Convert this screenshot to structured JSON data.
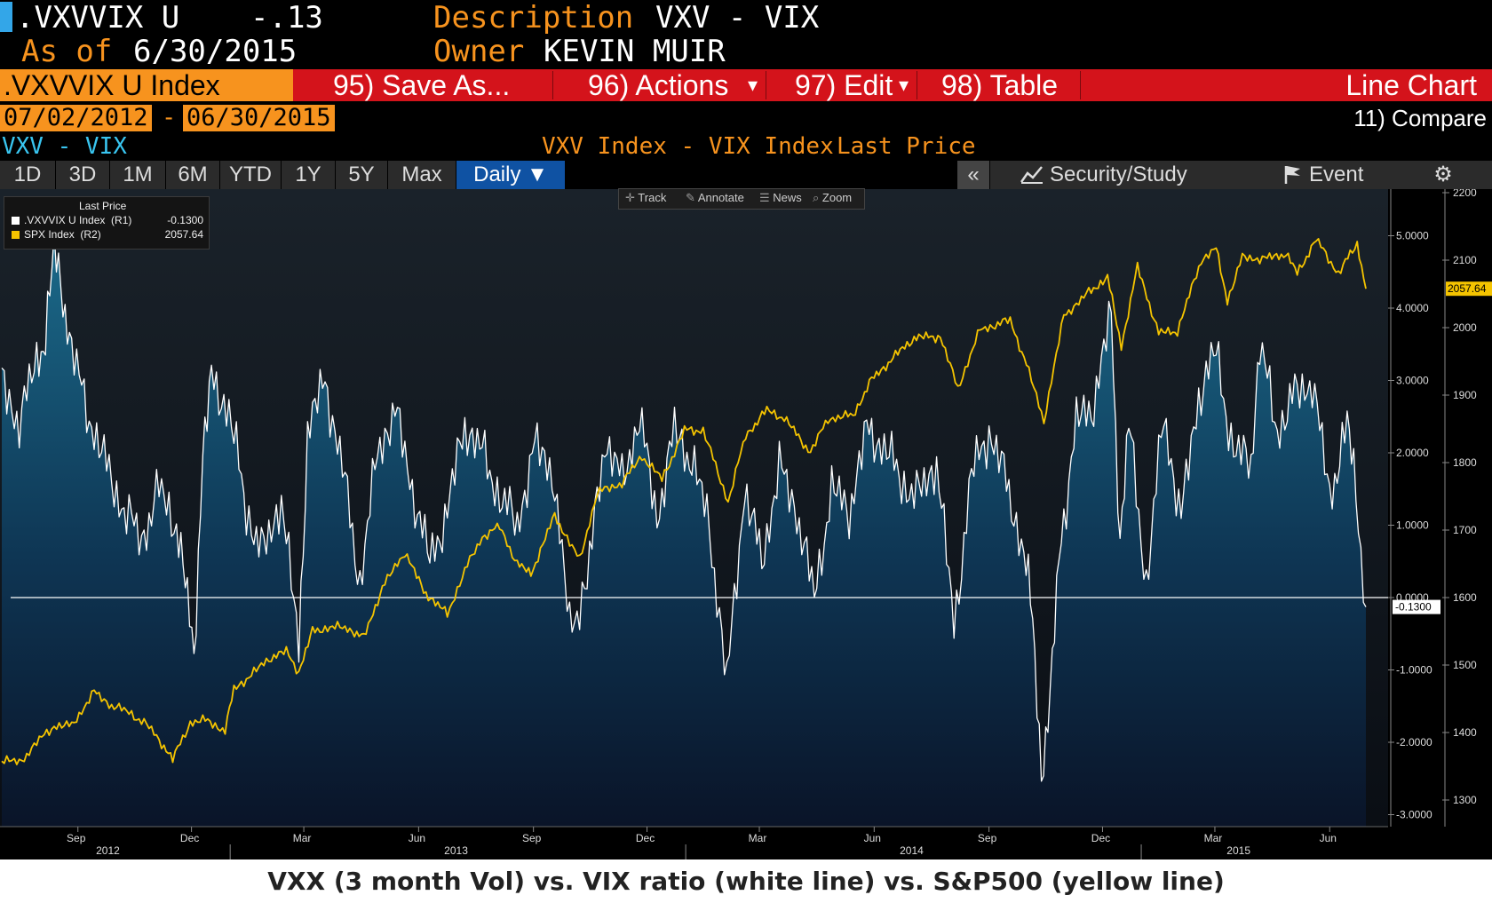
{
  "header": {
    "ticker": ".VXVVIX U",
    "change": "-.13",
    "asof_label": "As of",
    "asof_date": "6/30/2015",
    "description_label": "Description",
    "description_value": "VXV - VIX",
    "owner_label": "Owner",
    "owner_value": "KEVIN MUIR"
  },
  "toolbar": {
    "security": ".VXVVIX U Index",
    "save_as": "95) Save As...",
    "actions": "96) Actions",
    "edit": "97) Edit",
    "table": "98) Table",
    "chart_type": "Line Chart",
    "dropdown_glyph": "▾"
  },
  "dates": {
    "start": "07/02/2012",
    "dash": "-",
    "end": "06/30/2015",
    "compare": "11) Compare"
  },
  "subtitle": {
    "left": "VXV - VIX",
    "center": "VXV Index - VIX Index",
    "right": "Last Price"
  },
  "periods": [
    "1D",
    "3D",
    "1M",
    "6M",
    "YTD",
    "1Y",
    "5Y",
    "Max"
  ],
  "frequency": "Daily ▼",
  "right_tools": {
    "collapse": "«",
    "security_study": "Security/Study",
    "event": "Event",
    "settings": "⚙"
  },
  "chart_tools": [
    "Track",
    "Annotate",
    "News",
    "Zoom"
  ],
  "legend": {
    "title": "Last Price",
    "rows": [
      {
        "label": ".VXVVIX U Index  (R1)",
        "value": "-0.1300",
        "color": "#ffffff"
      },
      {
        "label": "SPX Index  (R2)",
        "value": "2057.64",
        "color": "#f5c400"
      }
    ]
  },
  "caption": "VXX (3 month Vol) vs. VIX ratio (white line) vs. S&P500 (yellow line)",
  "colors": {
    "accent": "#f7931e",
    "toolbar_red": "#d4131b",
    "spx": "#f5c400",
    "ratio": "#ffffff",
    "active_period": "#0f52a3"
  },
  "chart_data": {
    "type": "line",
    "x_range": [
      "2012-07-02",
      "2015-06-30"
    ],
    "x_tick_months": [
      "Sep",
      "Dec",
      "Mar",
      "Jun",
      "Sep",
      "Dec",
      "Mar",
      "Jun",
      "Sep",
      "Dec",
      "Mar",
      "Jun"
    ],
    "x_tick_years": [
      "2012",
      "2013",
      "2014",
      "2015"
    ],
    "axes": {
      "R1": {
        "ticks": [
          "5.0000",
          "4.0000",
          "3.0000",
          "2.0000",
          "1.0000",
          "0.0000",
          "-1.0000",
          "-2.0000",
          "-3.0000"
        ],
        "range": [
          -3.3,
          5.0
        ]
      },
      "R2": {
        "ticks": [
          "2200",
          "2100",
          "2000",
          "1900",
          "1800",
          "1700",
          "1600",
          "1500",
          "1400",
          "1300"
        ],
        "range": [
          1260,
          2200
        ]
      }
    },
    "last_values": {
      "R1": "-0.1300",
      "R2": "2057.64"
    },
    "reference_line": 0,
    "series": [
      {
        "name": ".VXVVIX U Index (R1)",
        "color": "#ffffff",
        "fill": true,
        "points": [
          [
            "2012-07-02",
            3.0
          ],
          [
            "2012-07-16",
            2.4
          ],
          [
            "2012-07-30",
            3.3
          ],
          [
            "2012-08-06",
            3.6
          ],
          [
            "2012-08-13",
            4.8
          ],
          [
            "2012-08-20",
            4.2
          ],
          [
            "2012-08-27",
            3.4
          ],
          [
            "2012-09-10",
            2.5
          ],
          [
            "2012-09-24",
            1.8
          ],
          [
            "2012-10-08",
            1.2
          ],
          [
            "2012-10-22",
            0.8
          ],
          [
            "2012-11-05",
            1.5
          ],
          [
            "2012-11-19",
            1.0
          ],
          [
            "2012-11-26",
            0.2
          ],
          [
            "2012-12-03",
            -0.8
          ],
          [
            "2012-12-10",
            2.0
          ],
          [
            "2012-12-17",
            3.0
          ],
          [
            "2012-12-31",
            2.6
          ],
          [
            "2013-01-14",
            1.2
          ],
          [
            "2013-01-28",
            0.6
          ],
          [
            "2013-02-11",
            1.4
          ],
          [
            "2013-02-25",
            -0.7
          ],
          [
            "2013-03-04",
            2.3
          ],
          [
            "2013-03-18",
            3.0
          ],
          [
            "2013-04-01",
            1.8
          ],
          [
            "2013-04-15",
            0.2
          ],
          [
            "2013-04-29",
            2.0
          ],
          [
            "2013-05-13",
            2.6
          ],
          [
            "2013-05-27",
            1.5
          ],
          [
            "2013-06-10",
            0.5
          ],
          [
            "2013-06-24",
            1.2
          ],
          [
            "2013-07-08",
            2.4
          ],
          [
            "2013-07-22",
            2.0
          ],
          [
            "2013-08-05",
            1.4
          ],
          [
            "2013-08-19",
            1.0
          ],
          [
            "2013-09-02",
            2.1
          ],
          [
            "2013-09-16",
            1.8
          ],
          [
            "2013-09-30",
            -0.4
          ],
          [
            "2013-10-14",
            0.2
          ],
          [
            "2013-10-28",
            2.2
          ],
          [
            "2013-11-11",
            1.6
          ],
          [
            "2013-11-25",
            2.5
          ],
          [
            "2013-12-09",
            1.1
          ],
          [
            "2013-12-23",
            2.3
          ],
          [
            "2014-01-06",
            1.9
          ],
          [
            "2014-01-20",
            1.0
          ],
          [
            "2014-02-03",
            -1.2
          ],
          [
            "2014-02-17",
            1.5
          ],
          [
            "2014-03-03",
            0.5
          ],
          [
            "2014-03-17",
            1.8
          ],
          [
            "2014-03-31",
            1.2
          ],
          [
            "2014-04-14",
            0.0
          ],
          [
            "2014-04-28",
            1.5
          ],
          [
            "2014-05-12",
            1.2
          ],
          [
            "2014-05-26",
            2.3
          ],
          [
            "2014-06-09",
            2.1
          ],
          [
            "2014-06-23",
            1.6
          ],
          [
            "2014-07-07",
            1.4
          ],
          [
            "2014-07-21",
            1.9
          ],
          [
            "2014-08-04",
            -0.4
          ],
          [
            "2014-08-18",
            1.7
          ],
          [
            "2014-09-01",
            2.3
          ],
          [
            "2014-09-15",
            1.6
          ],
          [
            "2014-09-29",
            0.6
          ],
          [
            "2014-10-06",
            -0.3
          ],
          [
            "2014-10-13",
            -2.4
          ],
          [
            "2014-10-20",
            -1.5
          ],
          [
            "2014-10-27",
            0.6
          ],
          [
            "2014-11-10",
            2.4
          ],
          [
            "2014-11-24",
            2.7
          ],
          [
            "2014-12-08",
            3.9
          ],
          [
            "2014-12-15",
            0.8
          ],
          [
            "2014-12-22",
            2.4
          ],
          [
            "2015-01-05",
            0.2
          ],
          [
            "2015-01-19",
            2.5
          ],
          [
            "2015-02-02",
            1.1
          ],
          [
            "2015-02-16",
            2.8
          ],
          [
            "2015-03-02",
            3.4
          ],
          [
            "2015-03-16",
            2.0
          ],
          [
            "2015-03-30",
            1.9
          ],
          [
            "2015-04-06",
            3.5
          ],
          [
            "2015-04-20",
            2.3
          ],
          [
            "2015-05-04",
            2.8
          ],
          [
            "2015-05-18",
            3.0
          ],
          [
            "2015-06-01",
            1.4
          ],
          [
            "2015-06-15",
            2.4
          ],
          [
            "2015-06-22",
            1.5
          ],
          [
            "2015-06-30",
            -0.13
          ]
        ]
      },
      {
        "name": "SPX Index (R2)",
        "color": "#f5c400",
        "fill": false,
        "points": [
          [
            "2012-07-02",
            1360
          ],
          [
            "2012-07-16",
            1355
          ],
          [
            "2012-07-30",
            1385
          ],
          [
            "2012-08-13",
            1410
          ],
          [
            "2012-08-27",
            1410
          ],
          [
            "2012-09-14",
            1460
          ],
          [
            "2012-09-28",
            1440
          ],
          [
            "2012-10-12",
            1430
          ],
          [
            "2012-10-26",
            1412
          ],
          [
            "2012-11-09",
            1380
          ],
          [
            "2012-11-16",
            1360
          ],
          [
            "2012-11-30",
            1415
          ],
          [
            "2012-12-14",
            1418
          ],
          [
            "2012-12-28",
            1402
          ],
          [
            "2013-01-04",
            1465
          ],
          [
            "2013-01-18",
            1485
          ],
          [
            "2013-02-01",
            1510
          ],
          [
            "2013-02-15",
            1520
          ],
          [
            "2013-02-25",
            1490
          ],
          [
            "2013-03-08",
            1550
          ],
          [
            "2013-03-22",
            1556
          ],
          [
            "2013-04-05",
            1555
          ],
          [
            "2013-04-18",
            1540
          ],
          [
            "2013-05-03",
            1615
          ],
          [
            "2013-05-21",
            1668
          ],
          [
            "2013-06-05",
            1610
          ],
          [
            "2013-06-24",
            1575
          ],
          [
            "2013-07-08",
            1640
          ],
          [
            "2013-07-22",
            1690
          ],
          [
            "2013-08-05",
            1705
          ],
          [
            "2013-08-19",
            1650
          ],
          [
            "2013-08-30",
            1635
          ],
          [
            "2013-09-18",
            1722
          ],
          [
            "2013-10-08",
            1655
          ],
          [
            "2013-10-22",
            1755
          ],
          [
            "2013-11-11",
            1770
          ],
          [
            "2013-11-27",
            1810
          ],
          [
            "2013-12-13",
            1775
          ],
          [
            "2013-12-31",
            1848
          ],
          [
            "2014-01-15",
            1848
          ],
          [
            "2014-02-04",
            1742
          ],
          [
            "2014-02-18",
            1840
          ],
          [
            "2014-03-07",
            1878
          ],
          [
            "2014-03-21",
            1866
          ],
          [
            "2014-04-11",
            1815
          ],
          [
            "2014-04-25",
            1865
          ],
          [
            "2014-05-15",
            1870
          ],
          [
            "2014-05-30",
            1923
          ],
          [
            "2014-06-20",
            1962
          ],
          [
            "2014-07-03",
            1985
          ],
          [
            "2014-07-24",
            1987
          ],
          [
            "2014-08-07",
            1910
          ],
          [
            "2014-08-25",
            1997
          ],
          [
            "2014-09-18",
            2011
          ],
          [
            "2014-10-01",
            1946
          ],
          [
            "2014-10-15",
            1862
          ],
          [
            "2014-10-31",
            2018
          ],
          [
            "2014-11-20",
            2052
          ],
          [
            "2014-12-05",
            2075
          ],
          [
            "2014-12-16",
            1972
          ],
          [
            "2014-12-29",
            2090
          ],
          [
            "2015-01-15",
            1992
          ],
          [
            "2015-01-30",
            1995
          ],
          [
            "2015-02-18",
            2100
          ],
          [
            "2015-03-02",
            2117
          ],
          [
            "2015-03-11",
            2040
          ],
          [
            "2015-03-23",
            2104
          ],
          [
            "2015-04-10",
            2102
          ],
          [
            "2015-04-27",
            2110
          ],
          [
            "2015-05-06",
            2080
          ],
          [
            "2015-05-21",
            2131
          ],
          [
            "2015-06-08",
            2080
          ],
          [
            "2015-06-23",
            2125
          ],
          [
            "2015-06-30",
            2057.64
          ]
        ]
      }
    ]
  }
}
